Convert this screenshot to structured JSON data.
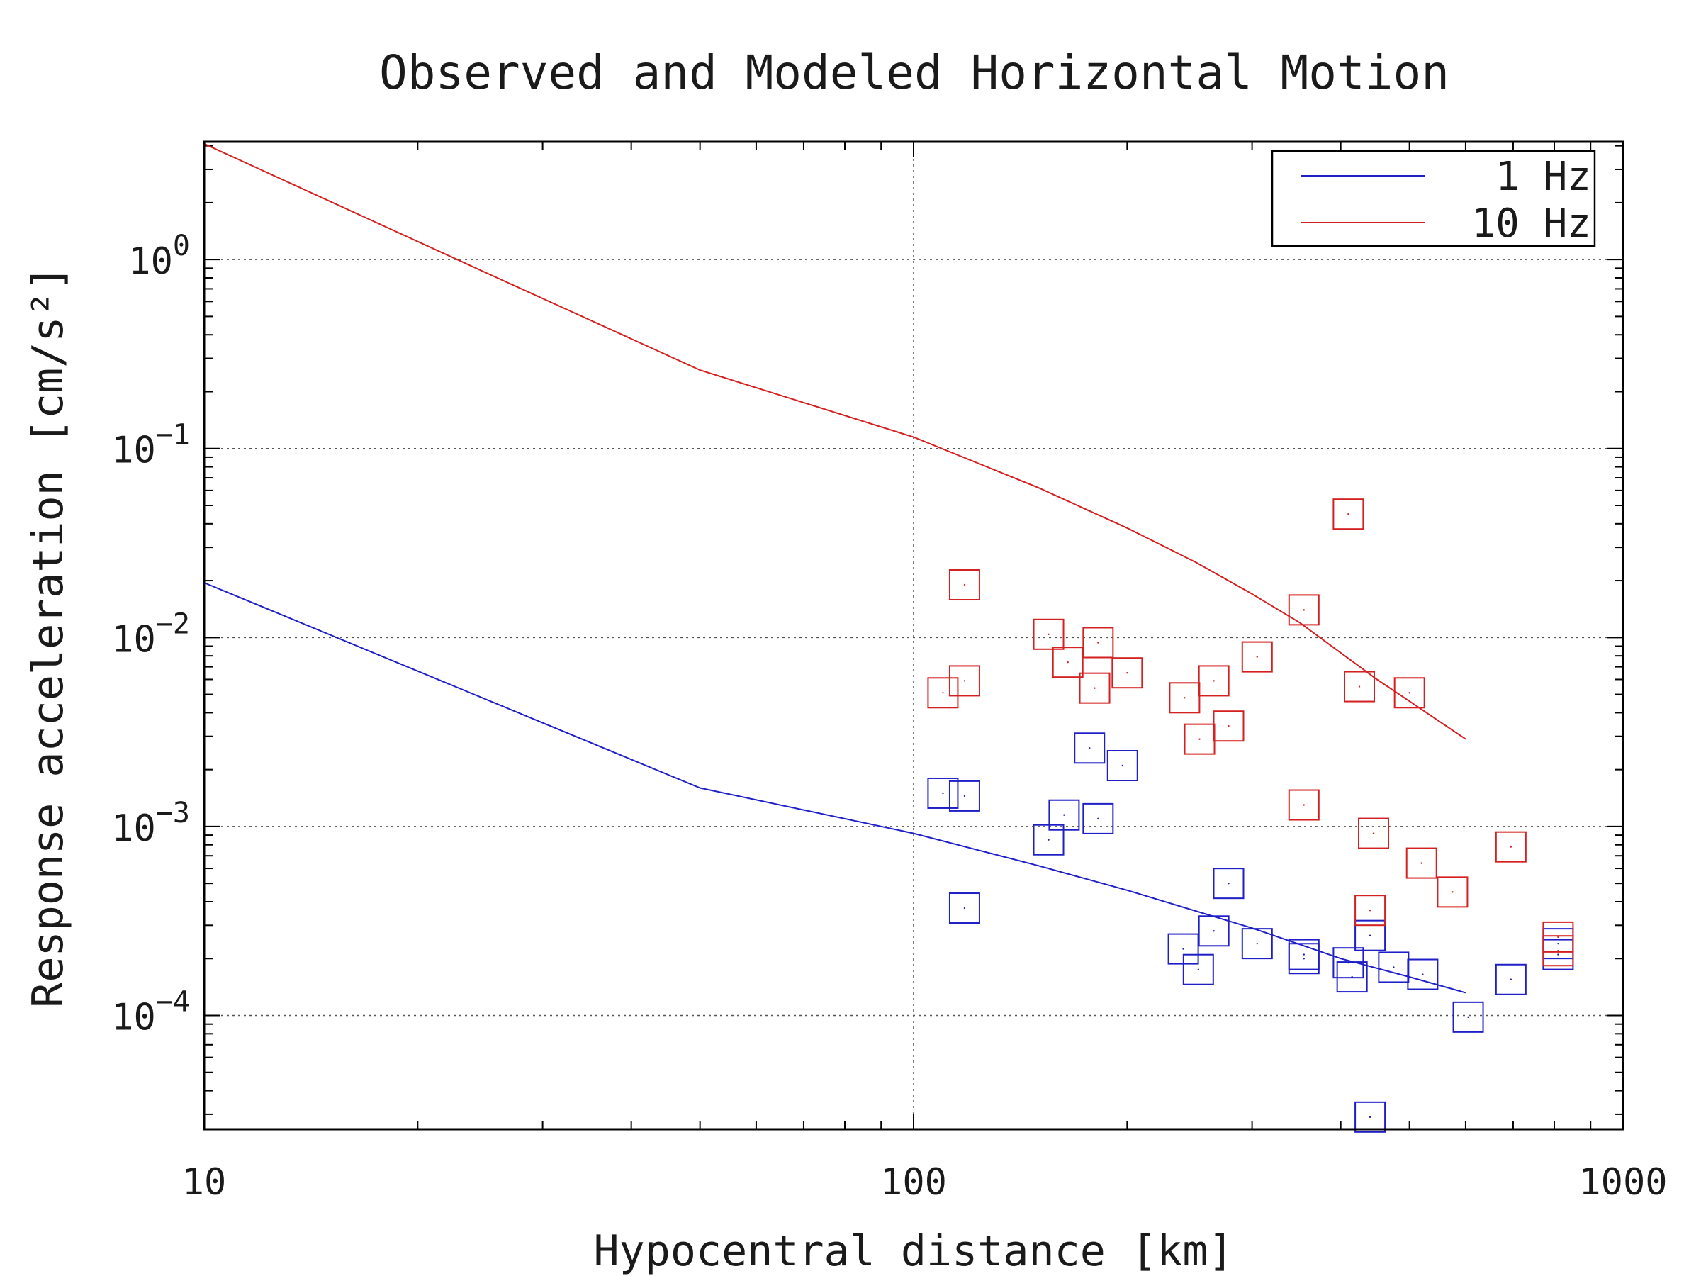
{
  "chart_data": {
    "type": "scatter",
    "title": "Observed and Modeled Horizontal Motion",
    "xlabel": "Hypocentral distance [km]",
    "ylabel": "Response acceleration [cm/s²]",
    "x_scale": "log",
    "y_scale": "log",
    "xlim": [
      10,
      1000
    ],
    "ylim": [
      2.5e-05,
      4.2
    ],
    "x_ticks": [
      {
        "value": 10,
        "label": "10"
      },
      {
        "value": 100,
        "label": "100"
      },
      {
        "value": 1000,
        "label": "1000"
      }
    ],
    "y_ticks": [
      {
        "value": 1,
        "base": "10",
        "exp": "0"
      },
      {
        "value": 0.1,
        "base": "10",
        "exp": "−1"
      },
      {
        "value": 0.01,
        "base": "10",
        "exp": "−2"
      },
      {
        "value": 0.001,
        "base": "10",
        "exp": "−3"
      },
      {
        "value": 0.0001,
        "base": "10",
        "exp": "−4"
      }
    ],
    "grid": true,
    "legend_position": "top-right",
    "lines": [
      {
        "name": "1 Hz",
        "color": "#1f1fc8",
        "x": [
          10,
          50,
          100,
          150,
          200,
          300,
          400,
          500,
          600
        ],
        "y": [
          0.0195,
          0.0016,
          0.00092,
          0.00062,
          0.00046,
          0.00029,
          0.0002,
          0.00016,
          0.000132
        ]
      },
      {
        "name": "10 Hz",
        "color": "#d42020",
        "x": [
          10,
          25,
          50,
          100,
          150,
          200,
          250,
          300,
          350,
          400,
          450,
          500,
          600
        ],
        "y": [
          4.1,
          0.85,
          0.26,
          0.115,
          0.062,
          0.038,
          0.025,
          0.017,
          0.012,
          0.0083,
          0.006,
          0.0046,
          0.0029
        ]
      }
    ],
    "observed_series": [
      {
        "color": "#1f1fc8",
        "marker": "square",
        "points": [
          [
            110,
            0.0015
          ],
          [
            118,
            0.00145
          ],
          [
            118,
            0.00037
          ],
          [
            155,
            0.00085
          ],
          [
            163,
            0.00115
          ],
          [
            177,
            0.0026
          ],
          [
            182,
            0.0011
          ],
          [
            197,
            0.0021
          ],
          [
            240,
            0.000225
          ],
          [
            252,
            0.000175
          ],
          [
            265,
            0.00028
          ],
          [
            278,
            0.0005
          ],
          [
            305,
            0.00024
          ],
          [
            355,
            0.00021
          ],
          [
            355,
            0.0002
          ],
          [
            410,
            0.00019
          ],
          [
            415,
            0.00016
          ],
          [
            440,
            0.000265
          ],
          [
            440,
            2.9e-05
          ],
          [
            475,
            0.00018
          ],
          [
            522,
            0.000165
          ],
          [
            605,
            9.8e-05
          ],
          [
            695,
            0.000155
          ],
          [
            810,
            0.00021
          ],
          [
            810,
            0.00024
          ]
        ]
      },
      {
        "color": "#d42020",
        "marker": "square",
        "points": [
          [
            110,
            0.0051
          ],
          [
            118,
            0.019
          ],
          [
            118,
            0.0059
          ],
          [
            155,
            0.0104
          ],
          [
            165,
            0.0074
          ],
          [
            180,
            0.0054
          ],
          [
            182,
            0.0094
          ],
          [
            200,
            0.0065
          ],
          [
            241,
            0.0048
          ],
          [
            253,
            0.0029
          ],
          [
            265,
            0.0059
          ],
          [
            278,
            0.0034
          ],
          [
            305,
            0.0079
          ],
          [
            355,
            0.014
          ],
          [
            355,
            0.0013
          ],
          [
            410,
            0.045
          ],
          [
            425,
            0.0055
          ],
          [
            440,
            0.00036
          ],
          [
            445,
            0.00092
          ],
          [
            500,
            0.0051
          ],
          [
            520,
            0.00064
          ],
          [
            575,
            0.00045
          ],
          [
            695,
            0.00078
          ],
          [
            810,
            0.00026
          ],
          [
            810,
            0.00022
          ]
        ]
      }
    ]
  }
}
